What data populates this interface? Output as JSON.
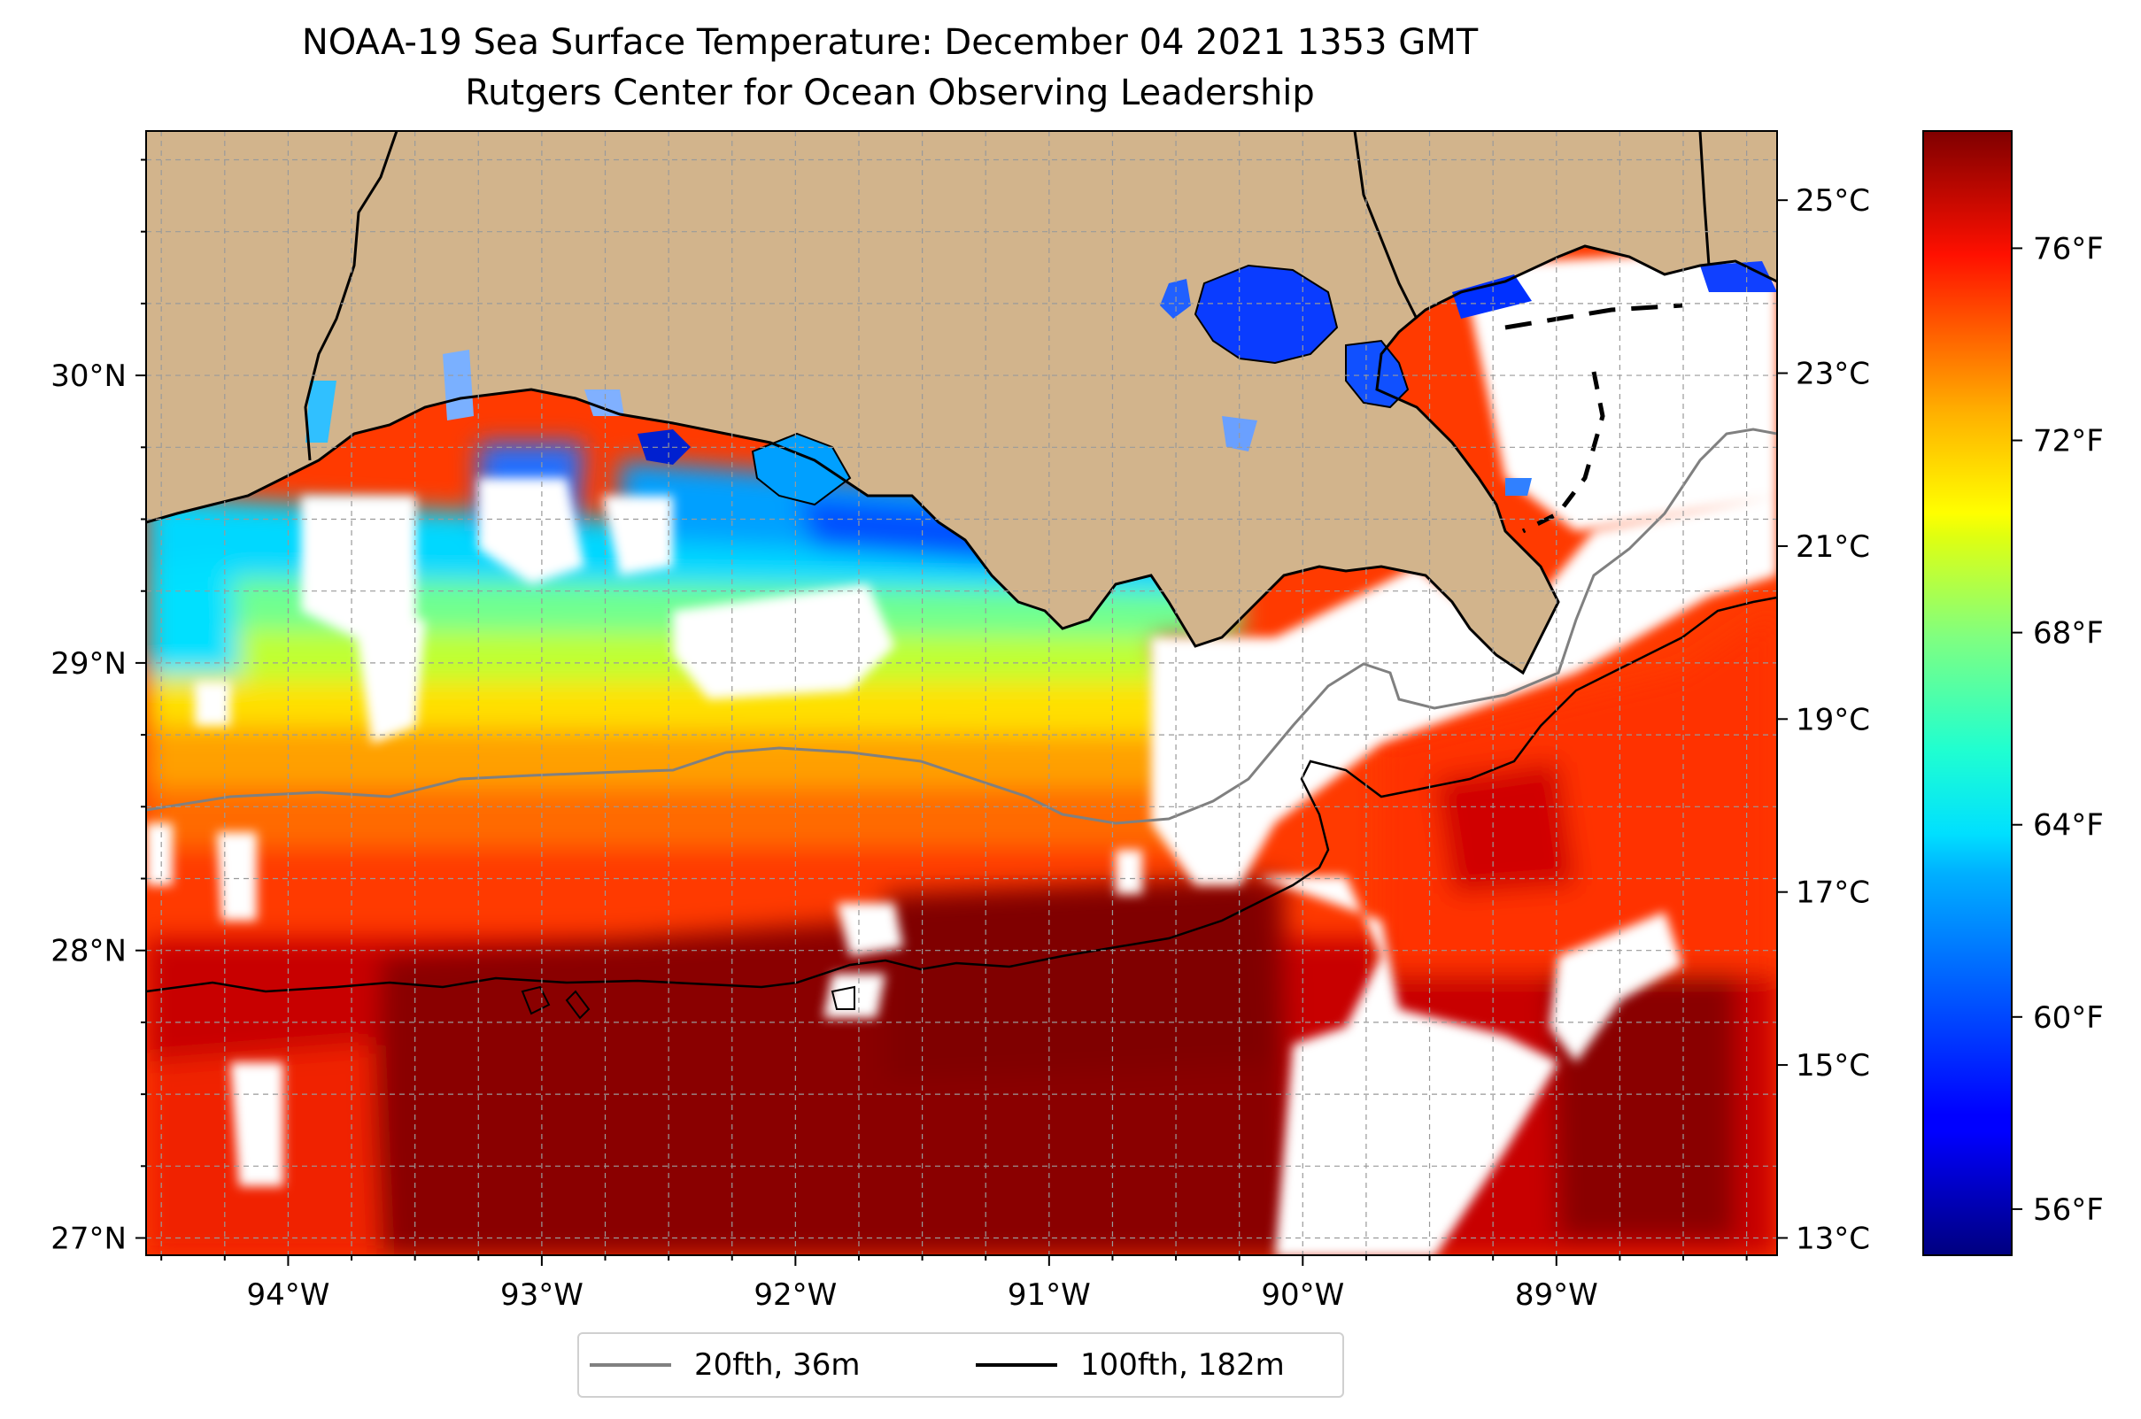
{
  "header": {
    "title_line1": "NOAA-19 Sea Surface Temperature: December 04 2021 1353 GMT",
    "title_line2": "Rutgers Center for Ocean Observing Leadership"
  },
  "map": {
    "extent": {
      "lon_min": -94.56,
      "lon_max": -88.13,
      "lat_min": 26.94,
      "lat_max": 30.85
    },
    "lon_ticks": [
      {
        "value": -94,
        "label": "94°W"
      },
      {
        "value": -93,
        "label": "93°W"
      },
      {
        "value": -92,
        "label": "92°W"
      },
      {
        "value": -91,
        "label": "91°W"
      },
      {
        "value": -90,
        "label": "90°W"
      },
      {
        "value": -89,
        "label": "89°W"
      }
    ],
    "lat_ticks": [
      {
        "value": 27,
        "label": "27°N"
      },
      {
        "value": 28,
        "label": "28°N"
      },
      {
        "value": 29,
        "label": "29°N"
      },
      {
        "value": 30,
        "label": "30°N"
      }
    ],
    "grid": "on",
    "land_color": "#d2b48c",
    "no_data_color": "#ffffff",
    "isobath_20fth_color": "#808080",
    "isobath_100fth_color": "#000000"
  },
  "colorbar": {
    "colormap": "jet",
    "range_celsius": [
      12.8,
      25.8
    ],
    "celsius_ticks": [
      {
        "value": 13,
        "label": "13°C"
      },
      {
        "value": 15,
        "label": "15°C"
      },
      {
        "value": 17,
        "label": "17°C"
      },
      {
        "value": 19,
        "label": "19°C"
      },
      {
        "value": 21,
        "label": "21°C"
      },
      {
        "value": 23,
        "label": "23°C"
      },
      {
        "value": 25,
        "label": "25°C"
      }
    ],
    "fahrenheit_ticks": [
      {
        "value": 56,
        "label": "56°F"
      },
      {
        "value": 60,
        "label": "60°F"
      },
      {
        "value": 64,
        "label": "64°F"
      },
      {
        "value": 68,
        "label": "68°F"
      },
      {
        "value": 72,
        "label": "72°F"
      },
      {
        "value": 76,
        "label": "76°F"
      }
    ]
  },
  "legend": {
    "placement": "bottom-center",
    "items": [
      {
        "label": "20fth, 36m",
        "color": "#808080"
      },
      {
        "label": "100fth, 182m",
        "color": "#000000"
      }
    ]
  }
}
